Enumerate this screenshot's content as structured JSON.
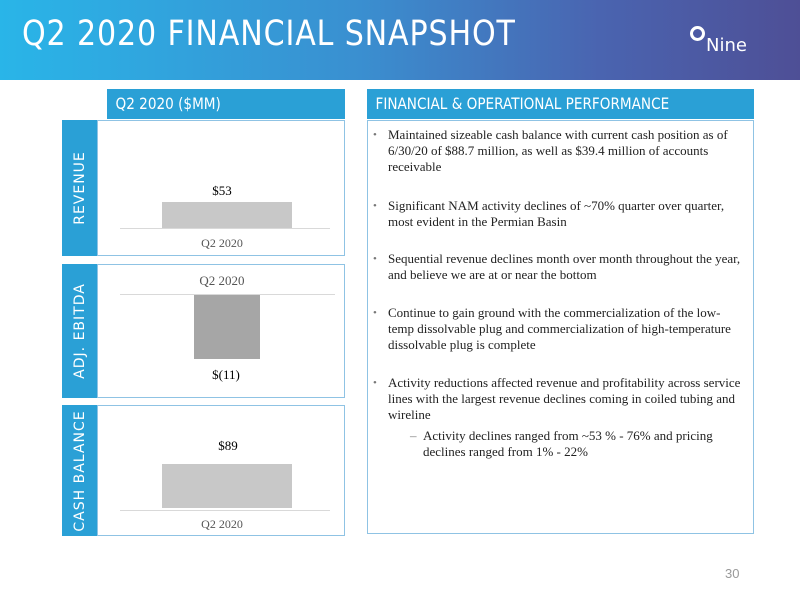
{
  "header": {
    "title": "Q2 2020 FINANCIAL SNAPSHOT",
    "logo_text": "Nine"
  },
  "left_section": {
    "heading": "Q2 2020 ($MM)"
  },
  "right_section": {
    "heading": "FINANCIAL & OPERATIONAL PERFORMANCE"
  },
  "charts": [
    {
      "label": "REVENUE",
      "type": "bar",
      "category": "Q2 2020",
      "value": 53,
      "value_label": "$53"
    },
    {
      "label": "ADJ. EBITDA",
      "type": "bar",
      "category": "Q2 2020",
      "value": -11,
      "value_label": "$(11)"
    },
    {
      "label": "CASH BALANCE",
      "type": "bar",
      "category": "Q2 2020",
      "value": 89,
      "value_label": "$89"
    }
  ],
  "bullets": [
    "Maintained sizeable cash balance with current cash position as of 6/30/20 of $88.7 million, as well as $39.4 million of accounts receivable",
    "Significant NAM activity declines of ~70% quarter over quarter, most evident in the Permian Basin",
    "Sequential revenue declines month over month throughout the year, and believe we are at or near the bottom",
    "Continue to gain ground with the commercialization of the low-temp dissolvable plug and commercialization of high-temperature dissolvable plug is complete",
    "Activity reductions affected revenue and profitability across service lines with the largest revenue declines coming in coiled tubing and wireline"
  ],
  "sub_bullets": [
    "Activity declines ranged from ~53 % - 76% and pricing declines ranged from 1% - 22%"
  ],
  "page_number": "30",
  "colors": {
    "accent": "#2aa0d6",
    "header_start": "#29b5e8",
    "header_end": "#4e4f96",
    "bar": "#c8c8c8",
    "bar_negative": "#a6a6a6"
  }
}
